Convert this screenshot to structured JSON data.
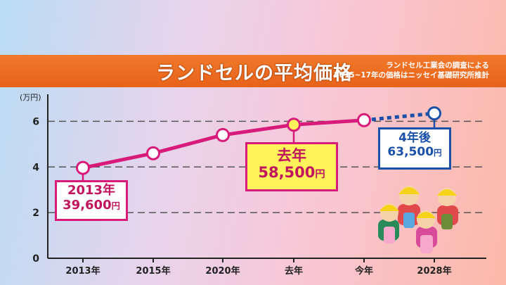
{
  "banner": {
    "title": "ランドセルの平均価格",
    "note_line1": "ランドセル工業会の調査による",
    "note_line2": "2015~17年の価格はニッセイ基礎研究所推計"
  },
  "axis": {
    "unit": "(万円)"
  },
  "callouts": {
    "first_year": "2013年",
    "first_value": "39,600",
    "last_year_label": "去年",
    "last_year_value": "58,500",
    "future_label": "4年後",
    "future_value": "63,500",
    "yen": "円"
  },
  "colors": {
    "line": "#d81b7a",
    "forecast": "#1a50a8",
    "highlight": "#fff25a",
    "banner": "#e8621a"
  },
  "chart_data": {
    "type": "line",
    "title": "ランドセルの平均価格",
    "categories": [
      "2013年",
      "2015年",
      "2020年",
      "去年",
      "今年",
      "2028年"
    ],
    "ylim": [
      0,
      7
    ],
    "yticks": [
      0,
      2,
      4,
      6
    ],
    "ylabel": "(万円)",
    "grid": true,
    "series": [
      {
        "values": [
          3.96,
          4.6,
          5.4,
          5.85,
          6.05,
          null
        ]
      },
      {
        "values": [
          null,
          null,
          null,
          null,
          6.05,
          6.35
        ]
      }
    ]
  }
}
